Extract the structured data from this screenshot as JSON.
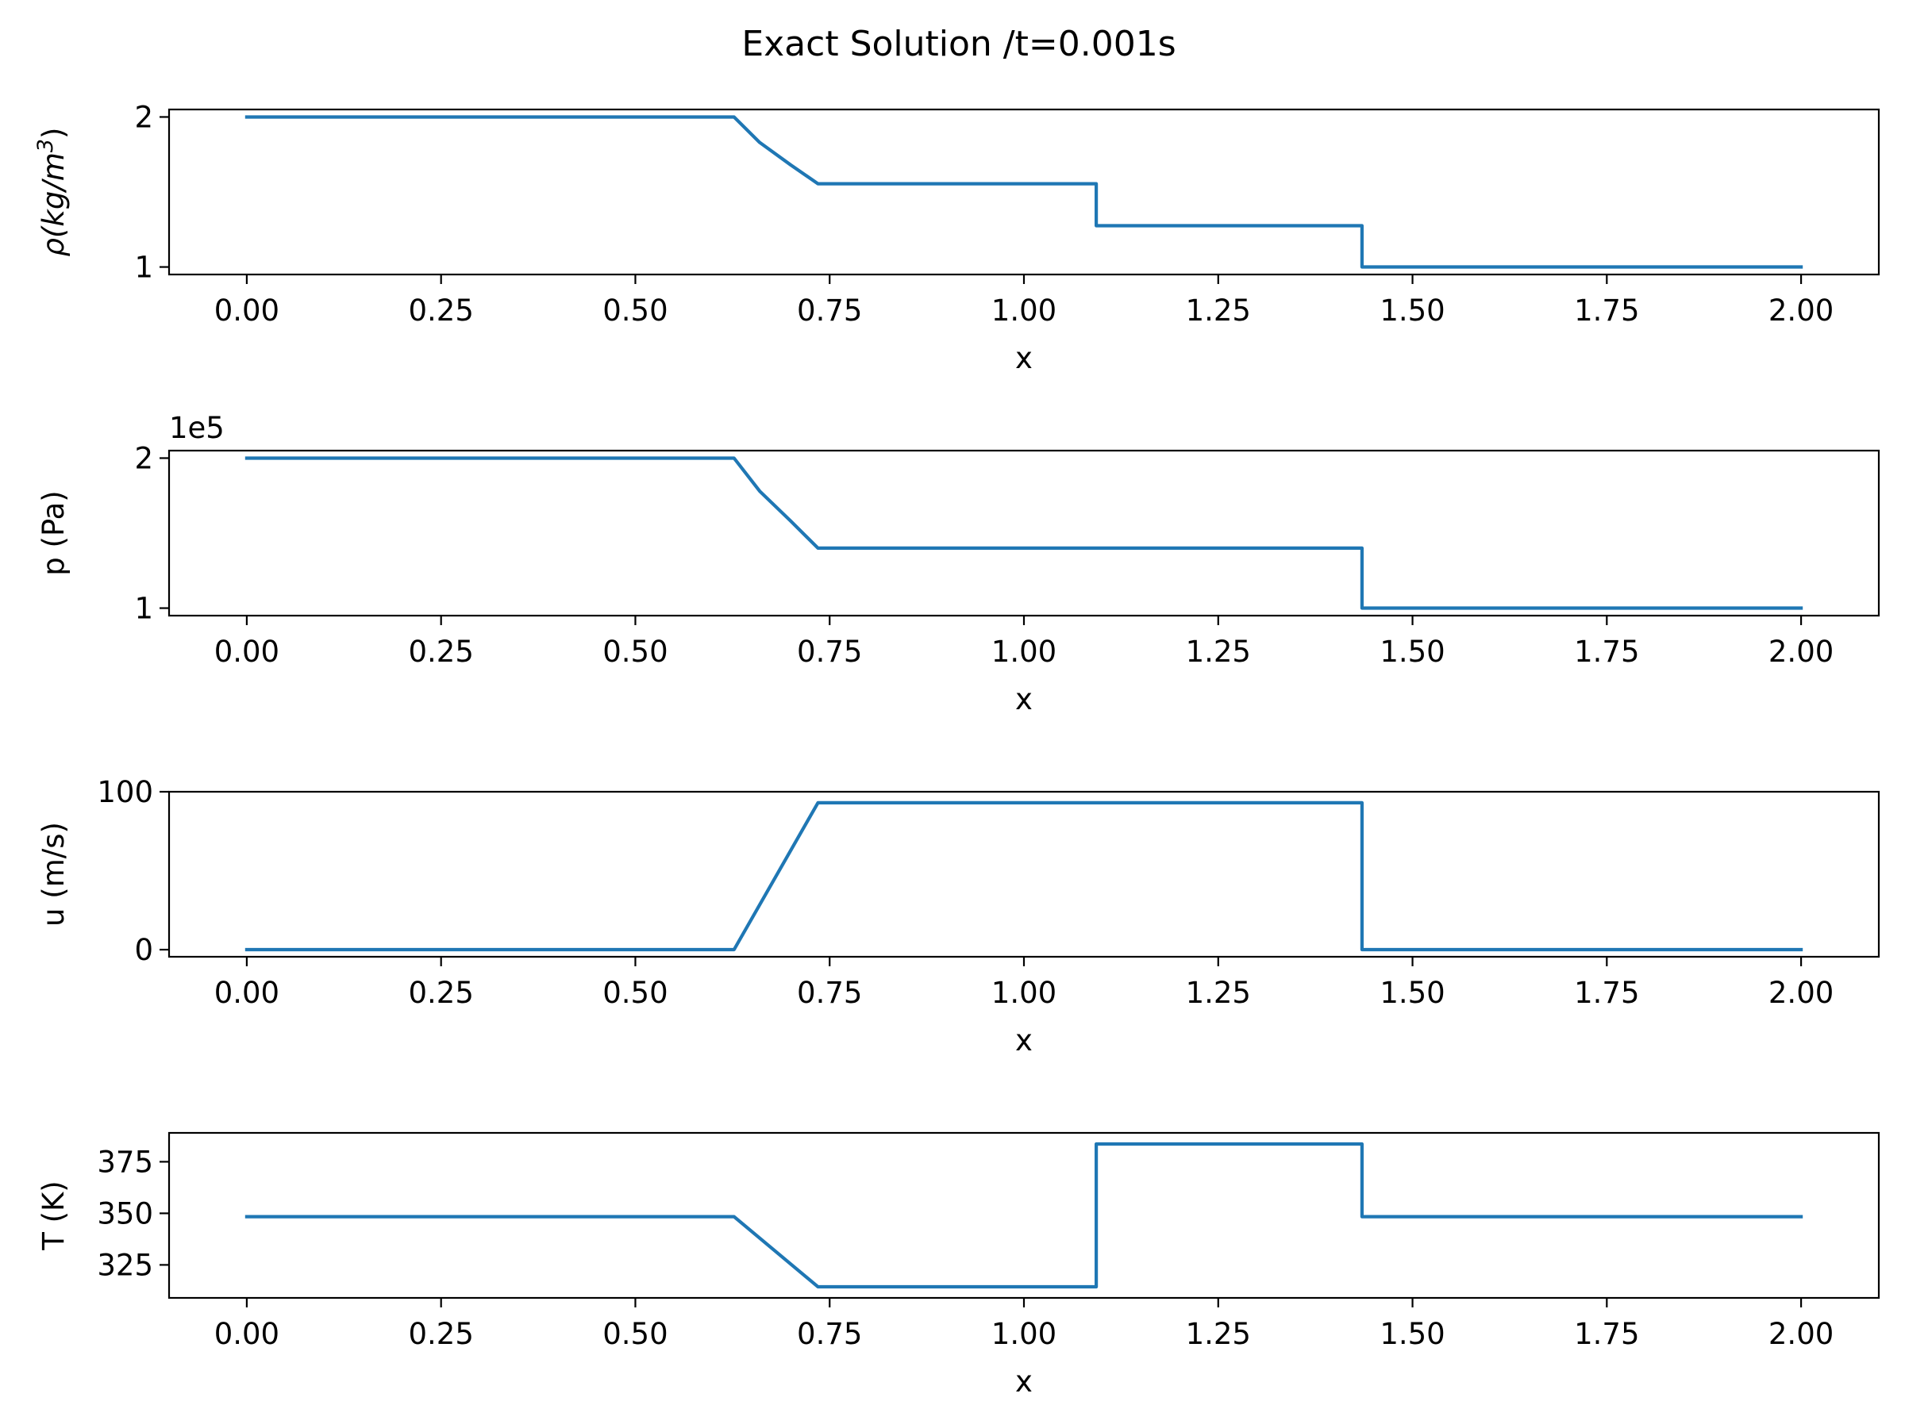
{
  "title": "Exact Solution /t=0.001s",
  "chart_data": [
    {
      "type": "line",
      "ylabel": "ρ(kg/m³)",
      "ylabel_parts": {
        "main": "ρ(kg/m",
        "sup": "3",
        "close": ")"
      },
      "xlabel": "x",
      "xlim": [
        -0.1,
        2.1
      ],
      "ylim": [
        0.95,
        2.05
      ],
      "xticks": [
        0,
        0.25,
        0.5,
        0.75,
        1,
        1.25,
        1.5,
        1.75,
        2
      ],
      "xtick_labels": [
        "0.00",
        "0.25",
        "0.50",
        "0.75",
        "1.00",
        "1.25",
        "1.50",
        "1.75",
        "2.00"
      ],
      "yticks": [
        1,
        2
      ],
      "ytick_labels": [
        "1",
        "2"
      ],
      "offset_text": "",
      "series": [
        {
          "x": [
            0,
            0.627,
            0.66,
            0.7,
            0.735,
            1.093,
            1.093,
            1.435,
            1.435,
            2.0
          ],
          "y": [
            2.0,
            2.0,
            1.83,
            1.68,
            1.555,
            1.555,
            1.275,
            1.275,
            1.0,
            1.0
          ]
        }
      ]
    },
    {
      "type": "line",
      "ylabel": "p (Pa)",
      "xlabel": "x",
      "xlim": [
        -0.1,
        2.1
      ],
      "ylim": [
        0.95,
        2.05
      ],
      "xticks": [
        0,
        0.25,
        0.5,
        0.75,
        1,
        1.25,
        1.5,
        1.75,
        2
      ],
      "xtick_labels": [
        "0.00",
        "0.25",
        "0.50",
        "0.75",
        "1.00",
        "1.25",
        "1.50",
        "1.75",
        "2.00"
      ],
      "yticks": [
        1,
        2
      ],
      "ytick_labels": [
        "1",
        "2"
      ],
      "offset_text": "1e5",
      "series": [
        {
          "x": [
            0,
            0.627,
            0.66,
            0.7,
            0.735,
            1.435,
            1.435,
            2.0
          ],
          "y": [
            2.0,
            2.0,
            1.78,
            1.58,
            1.4,
            1.4,
            1.0,
            1.0
          ]
        }
      ]
    },
    {
      "type": "line",
      "ylabel": "u (m/s)",
      "xlabel": "x",
      "xlim": [
        -0.1,
        2.1
      ],
      "ylim": [
        -4.5,
        100
      ],
      "xticks": [
        0,
        0.25,
        0.5,
        0.75,
        1,
        1.25,
        1.5,
        1.75,
        2
      ],
      "xtick_labels": [
        "0.00",
        "0.25",
        "0.50",
        "0.75",
        "1.00",
        "1.25",
        "1.50",
        "1.75",
        "2.00"
      ],
      "yticks": [
        0,
        100
      ],
      "ytick_labels": [
        "0",
        "100"
      ],
      "offset_text": "",
      "series": [
        {
          "x": [
            0,
            0.627,
            0.735,
            1.435,
            1.435,
            2.0
          ],
          "y": [
            0,
            0,
            93,
            93,
            0,
            0
          ]
        }
      ]
    },
    {
      "type": "line",
      "ylabel": "T (K)",
      "xlabel": "x",
      "xlim": [
        -0.1,
        2.1
      ],
      "ylim": [
        309,
        389
      ],
      "xticks": [
        0,
        0.25,
        0.5,
        0.75,
        1,
        1.25,
        1.5,
        1.75,
        2
      ],
      "xtick_labels": [
        "0.00",
        "0.25",
        "0.50",
        "0.75",
        "1.00",
        "1.25",
        "1.50",
        "1.75",
        "2.00"
      ],
      "yticks": [
        325,
        350,
        375
      ],
      "ytick_labels": [
        "325",
        "350",
        "375"
      ],
      "offset_text": "",
      "series": [
        {
          "x": [
            0,
            0.627,
            0.735,
            1.093,
            1.093,
            1.435,
            1.435,
            2.0
          ],
          "y": [
            348.4,
            348.4,
            314.4,
            314.4,
            383.6,
            383.6,
            348.4,
            348.4
          ]
        }
      ]
    }
  ]
}
